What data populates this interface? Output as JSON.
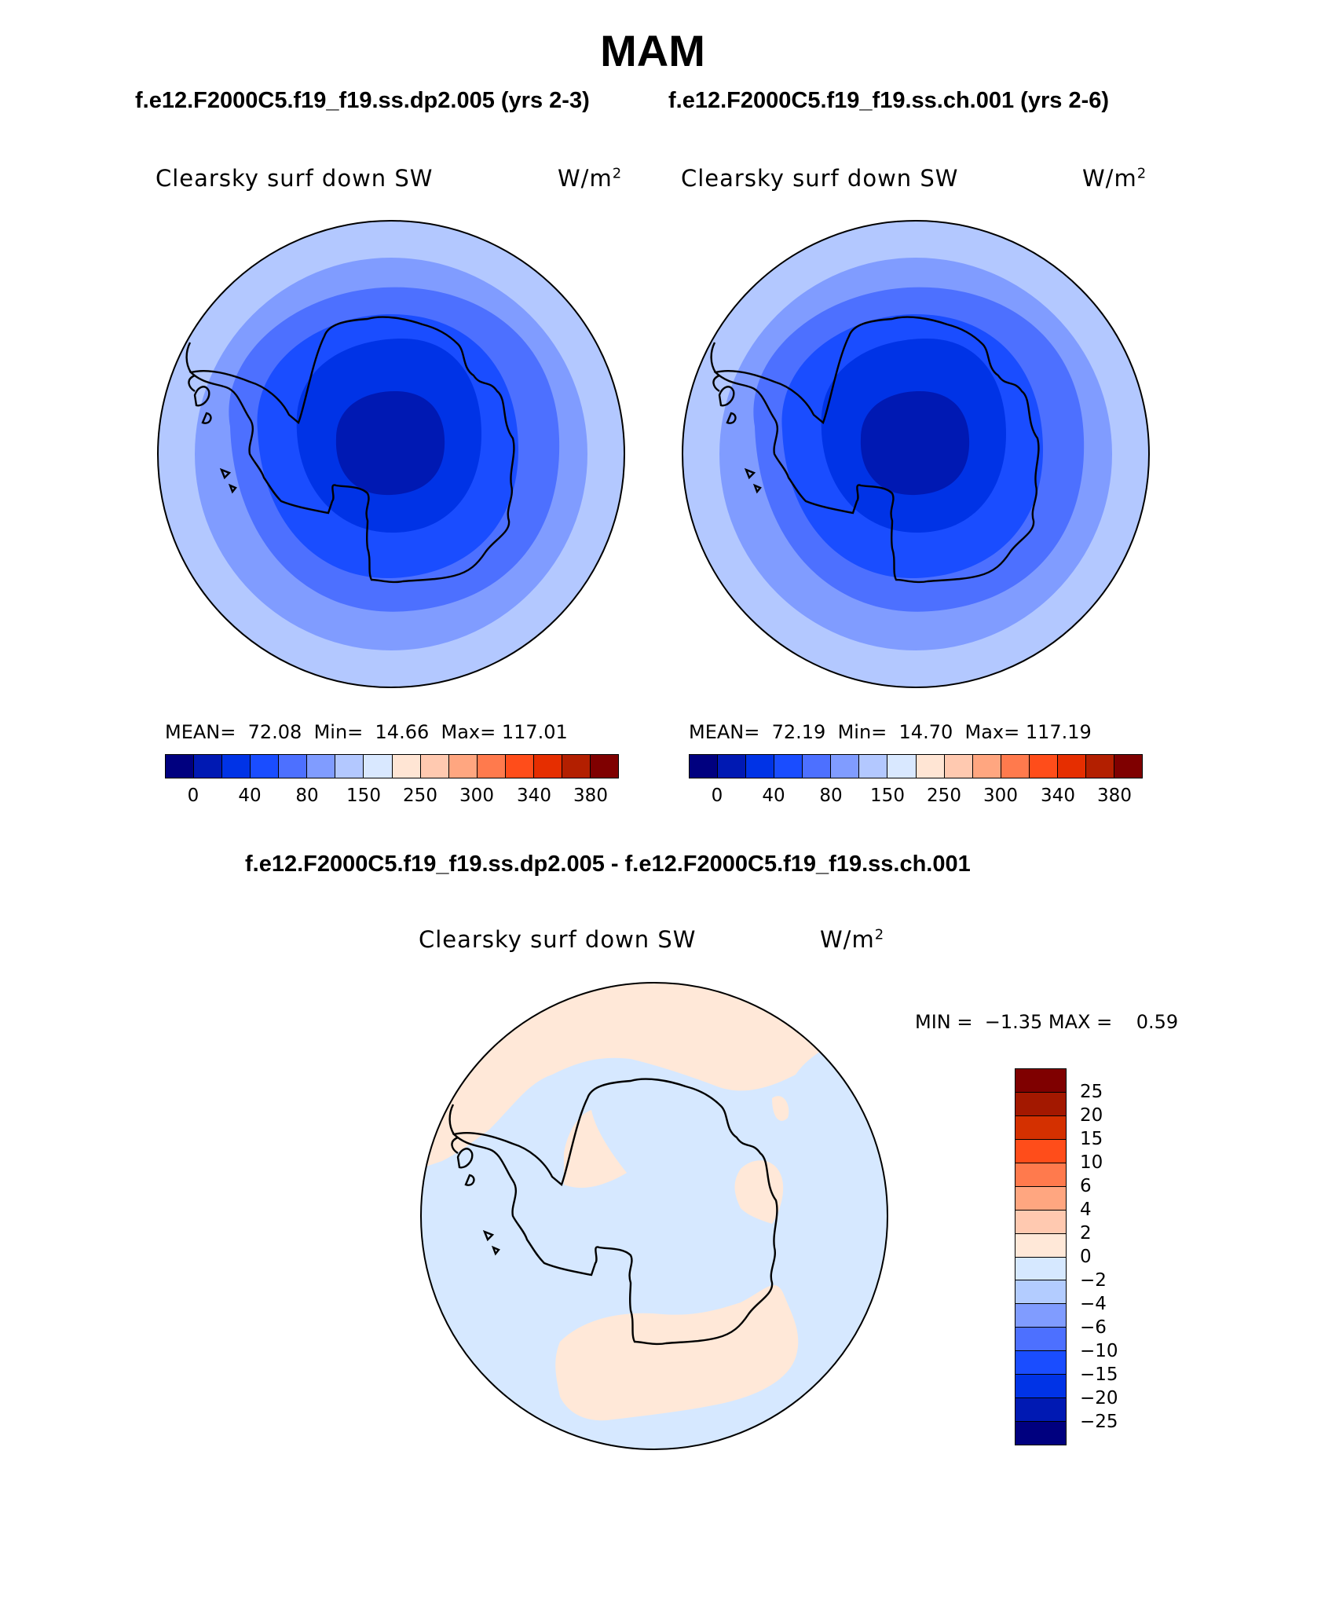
{
  "title": "MAM",
  "subtitle_left": "f.e12.F2000C5.f19_f19.ss.dp2.005 (yrs 2-3)",
  "subtitle_right": "f.e12.F2000C5.f19_f19.ss.ch.001 (yrs 2-6)",
  "diff_title": "f.e12.F2000C5.f19_f19.ss.dp2.005 - f.e12.F2000C5.f19_f19.ss.ch.001",
  "panels": [
    {
      "variable": "Clearsky surf down SW",
      "units": "W/m",
      "units_sup": "2",
      "stats": "MEAN=  72.08  Min=  14.66  Max= 117.01"
    },
    {
      "variable": "Clearsky surf down SW",
      "units": "W/m",
      "units_sup": "2",
      "stats": "MEAN=  72.19  Min=  14.70  Max= 117.19"
    }
  ],
  "diff_panel": {
    "variable": "Clearsky surf down SW",
    "units": "W/m",
    "units_sup": "2",
    "minmax": "MIN =  −1.35 MAX =    0.59"
  },
  "chart_data": [
    {
      "type": "heatmap",
      "projection": "south polar stereographic",
      "levels": [
        "0",
        "40",
        "80",
        "150",
        "250",
        "300",
        "340",
        "380"
      ],
      "colors": [
        "#00007f",
        "#0019b3",
        "#0033e6",
        "#1a4dff",
        "#4d70ff",
        "#809cff",
        "#b3c8ff",
        "#d9e8ff",
        "#ffe5d4",
        "#ffc9b0",
        "#ffa680",
        "#ff7a4d",
        "#ff4d1a",
        "#e62e00",
        "#b31f00",
        "#7f0000"
      ],
      "mean": 72.08,
      "min": 14.66,
      "max": 117.01
    },
    {
      "type": "heatmap",
      "projection": "south polar stereographic",
      "levels": [
        "0",
        "40",
        "80",
        "150",
        "250",
        "300",
        "340",
        "380"
      ],
      "mean": 72.19,
      "min": 14.7,
      "max": 117.19
    },
    {
      "type": "heatmap",
      "projection": "south polar stereographic",
      "levels": [
        "25",
        "20",
        "15",
        "10",
        "6",
        "4",
        "2",
        "0",
        "−2",
        "−4",
        "−6",
        "−10",
        "−15",
        "−20",
        "−25"
      ],
      "colors": [
        "#7f0000",
        "#a31800",
        "#d43000",
        "#ff4d1a",
        "#ff7a4d",
        "#ffa680",
        "#ffc9b0",
        "#ffe8d8",
        "#d6e8ff",
        "#b3ccff",
        "#809cff",
        "#4d70ff",
        "#1a4dff",
        "#0033e6",
        "#0019b3",
        "#00007f"
      ],
      "min": -1.35,
      "max": 0.59
    }
  ]
}
